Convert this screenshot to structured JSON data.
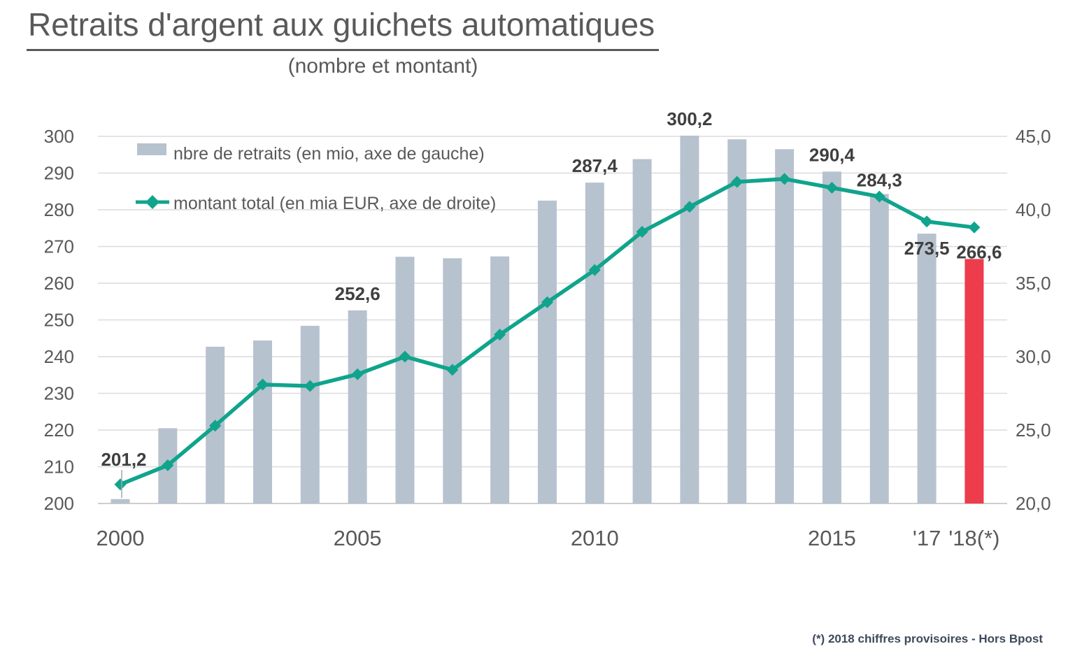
{
  "header": {
    "title": "Retraits d'argent aux guichets automatiques",
    "subtitle": "(nombre et montant)"
  },
  "footnote": "(*) 2018 chiffres provisoires - Hors Bpost",
  "colors": {
    "bar": "#b7c2cf",
    "bar_highlight": "#ed3c4b",
    "line": "#10a48c",
    "grid": "#dcdcdc",
    "axis_line": "#bdbdbd",
    "axis_text": "#595959",
    "point_label_text": "#3f3f3f",
    "leader_line": "#a6a6a6"
  },
  "chart_data": {
    "type": "combo-bar-line",
    "title": "Retraits d'argent aux guichets automatiques",
    "subtitle": "(nombre et montant)",
    "grid": true,
    "legend_position": "top-left",
    "categories": [
      2000,
      2001,
      2002,
      2003,
      2004,
      2005,
      2006,
      2007,
      2008,
      2009,
      2010,
      2011,
      2012,
      2013,
      2014,
      2015,
      2016,
      2017,
      2018
    ],
    "series": [
      {
        "name": "nbre de retraits (en mio, axe de gauche)",
        "type": "bar",
        "axis": "left",
        "highlight_year": 2018,
        "values": [
          201.2,
          220.5,
          242.7,
          244.4,
          248.4,
          252.6,
          267.2,
          266.8,
          267.3,
          282.5,
          287.4,
          293.8,
          300.2,
          299.2,
          296.5,
          290.4,
          284.3,
          273.5,
          266.6
        ]
      },
      {
        "name": "montant total (en mia EUR, axe de droite)",
        "type": "line",
        "axis": "right",
        "values": [
          21.3,
          22.6,
          25.3,
          28.1,
          28.0,
          28.8,
          30.0,
          29.1,
          31.5,
          33.7,
          35.9,
          38.5,
          40.2,
          41.9,
          42.1,
          41.5,
          40.9,
          39.2,
          38.8
        ]
      }
    ],
    "point_labels": {
      "2000": "201,2",
      "2005": "252,6",
      "2010": "287,4",
      "2012": "300,2",
      "2015": "290,4",
      "2016": "284,3",
      "2017": "273,5",
      "2018": "266,6"
    },
    "left_axis": {
      "min": 200,
      "max": 300,
      "step": 10,
      "tick_labels": [
        "200",
        "210",
        "220",
        "230",
        "240",
        "250",
        "260",
        "270",
        "280",
        "290",
        "300"
      ]
    },
    "right_axis": {
      "min": 20,
      "max": 45,
      "step": 5,
      "tick_labels": [
        "20,0",
        "25,0",
        "30,0",
        "35,0",
        "40,0",
        "45,0"
      ]
    },
    "x_ticks": [
      {
        "year": 2000,
        "label": "2000"
      },
      {
        "year": 2005,
        "label": "2005"
      },
      {
        "year": 2010,
        "label": "2010"
      },
      {
        "year": 2015,
        "label": "2015"
      },
      {
        "year": 2017,
        "label": "'17"
      },
      {
        "year": 2018,
        "label": "'18(*)"
      }
    ]
  }
}
